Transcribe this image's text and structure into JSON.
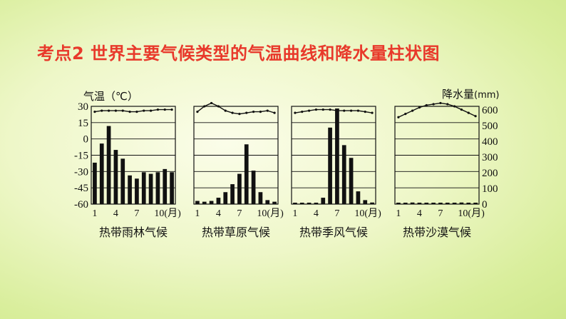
{
  "title": "考点2  世界主要气候类型的气温曲线和降水量柱状图",
  "axes": {
    "temp_label": "气温（℃）",
    "precip_label": "降水量",
    "precip_unit": "(mm)",
    "temp_ticks": [
      "30",
      "15",
      "0",
      "-15",
      "-30",
      "-45",
      "-60"
    ],
    "precip_ticks": [
      "600",
      "500",
      "400",
      "300",
      "200",
      "100",
      "0"
    ],
    "month_ticks": [
      "1",
      "4",
      "7",
      "10(月)"
    ]
  },
  "chart_data": [
    {
      "type": "bar+line",
      "title": "热带雨林气候",
      "months": [
        1,
        2,
        3,
        4,
        5,
        6,
        7,
        8,
        9,
        10,
        11,
        12
      ],
      "temperature_c": [
        25,
        26,
        26,
        26,
        26,
        25,
        25,
        26,
        26,
        27,
        27,
        27
      ],
      "precipitation_mm": [
        260,
        380,
        490,
        340,
        285,
        180,
        160,
        200,
        190,
        200,
        220,
        200
      ],
      "temp_range": [
        -60,
        30
      ],
      "precip_range": [
        0,
        600
      ]
    },
    {
      "type": "bar+line",
      "title": "热带草原气候",
      "months": [
        1,
        2,
        3,
        4,
        5,
        6,
        7,
        8,
        9,
        10,
        11,
        12
      ],
      "temperature_c": [
        25,
        30,
        33,
        30,
        26,
        24,
        23,
        24,
        25,
        25,
        26,
        24
      ],
      "precipitation_mm": [
        20,
        15,
        20,
        40,
        75,
        125,
        190,
        375,
        210,
        75,
        25,
        15
      ],
      "temp_range": [
        -60,
        30
      ],
      "precip_range": [
        0,
        600
      ]
    },
    {
      "type": "bar+line",
      "title": "热带季风气候",
      "months": [
        1,
        2,
        3,
        4,
        5,
        6,
        7,
        8,
        9,
        10,
        11,
        12
      ],
      "temperature_c": [
        24,
        25,
        26,
        27,
        27,
        27,
        26,
        26,
        26,
        26,
        25,
        24
      ],
      "precipitation_mm": [
        5,
        5,
        5,
        5,
        40,
        480,
        600,
        370,
        290,
        80,
        25,
        10
      ],
      "temp_range": [
        -60,
        30
      ],
      "precip_range": [
        0,
        600
      ]
    },
    {
      "type": "bar+line",
      "title": "热带沙漠气候",
      "months": [
        1,
        2,
        3,
        4,
        5,
        6,
        7,
        8,
        9,
        10,
        11,
        12
      ],
      "temperature_c": [
        20,
        23,
        26,
        29,
        31,
        32,
        33,
        32,
        30,
        27,
        24,
        21
      ],
      "precipitation_mm": [
        5,
        5,
        10,
        5,
        5,
        0,
        0,
        5,
        5,
        10,
        5,
        5
      ],
      "temp_range": [
        -60,
        30
      ],
      "precip_range": [
        0,
        600
      ]
    }
  ]
}
